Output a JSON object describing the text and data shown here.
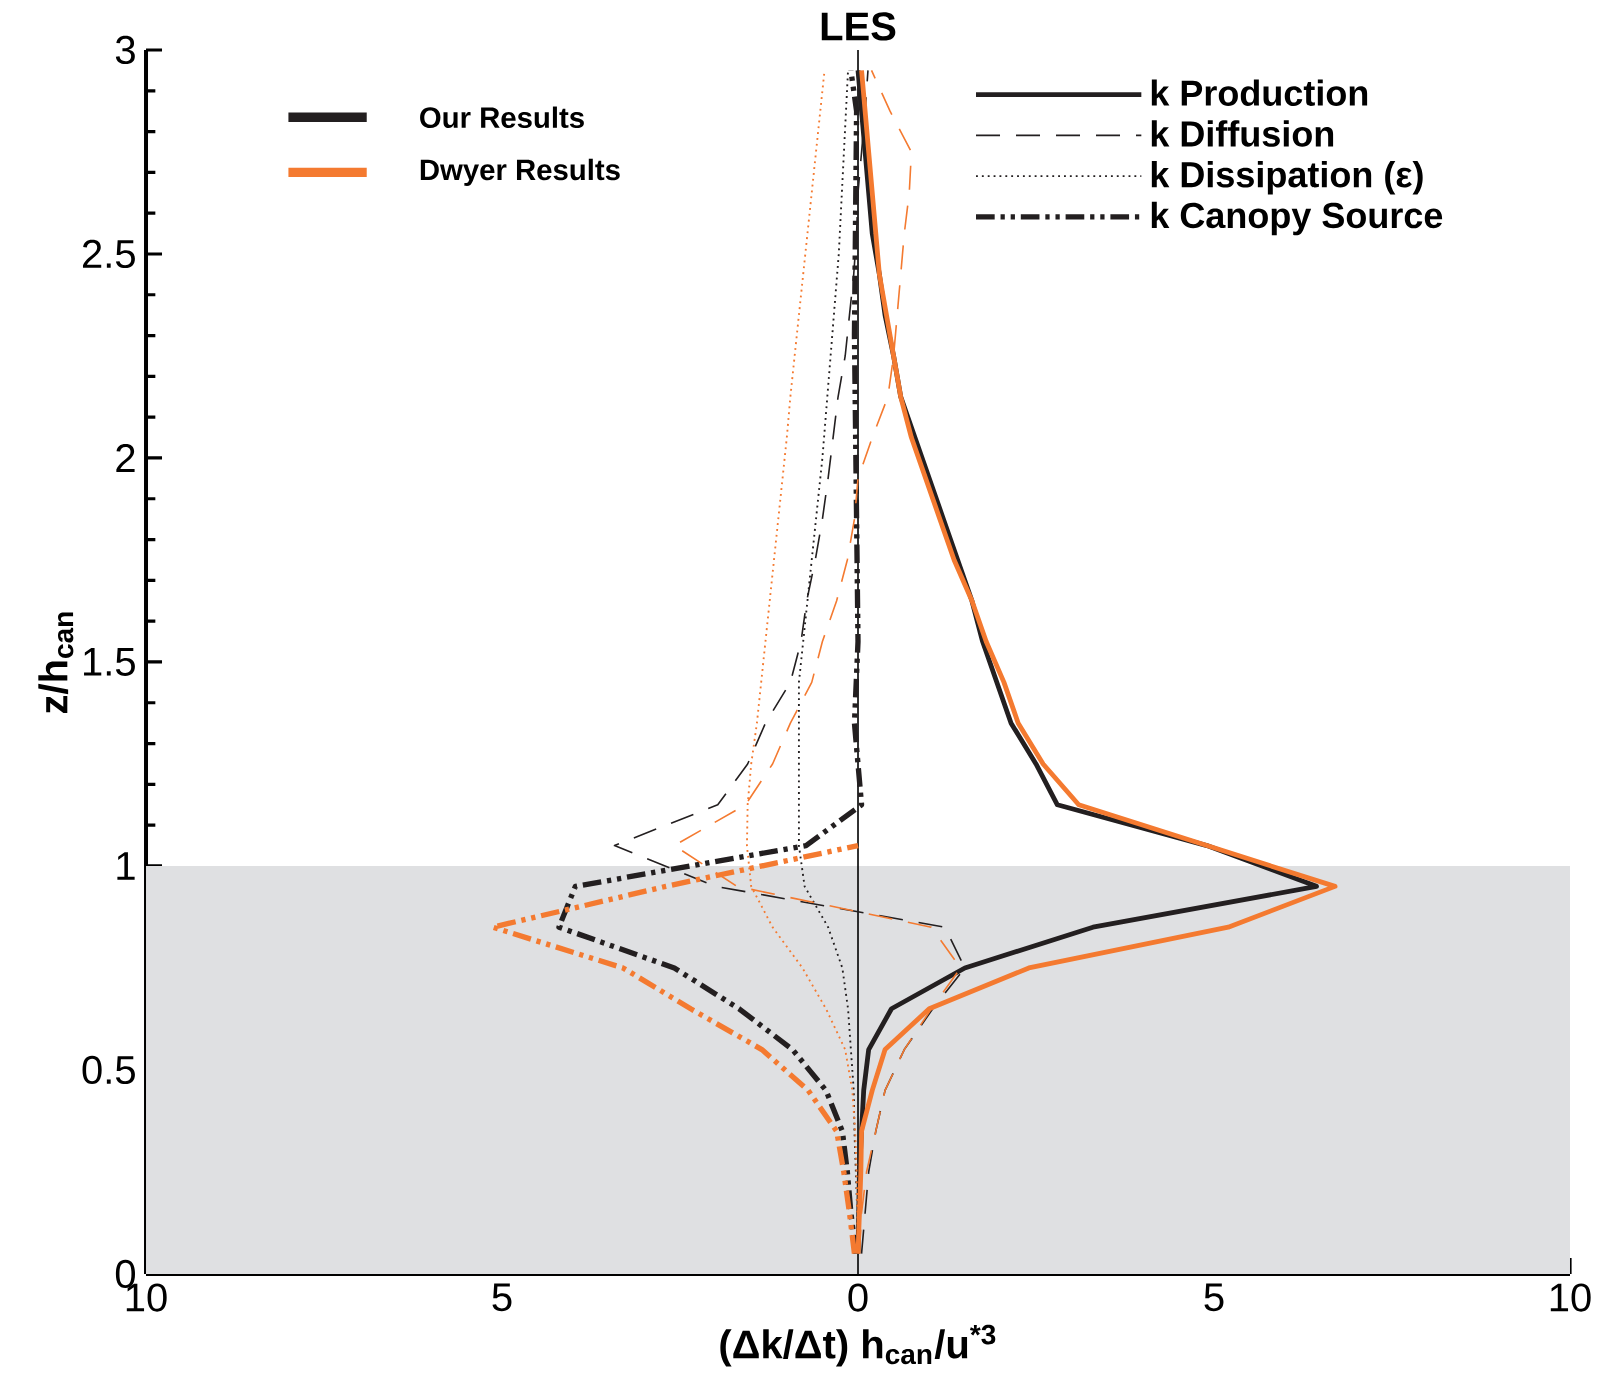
{
  "chart_data": {
    "type": "line",
    "title": "LES",
    "xlabel": "(Δk/Δt) h$_{can}$/u$^{*3}$",
    "ylabel": "z/h$_{can}$",
    "xlim": [
      -10,
      10
    ],
    "ylim": [
      0,
      3
    ],
    "xticks": [
      {
        "value": -10,
        "label": "10"
      },
      {
        "value": -5,
        "label": "5"
      },
      0,
      5,
      10
    ],
    "yticks": [
      0,
      0.5,
      1,
      1.5,
      2,
      2.5,
      3
    ],
    "legend": "top right",
    "annotations": [
      "Our Results",
      "Dwyer Results"
    ],
    "bands": [
      {
        "axis": "y",
        "from": 0,
        "to": 1,
        "color": "#dfe0e2"
      }
    ],
    "ref_lines": [
      {
        "axis": "x",
        "value": 0,
        "color": "#000000"
      }
    ],
    "series": [
      {
        "name": "k Production",
        "color": "#231f20",
        "line_style": "solid",
        "x": [
          0.0,
          0.01,
          0.02,
          0.05,
          0.08,
          0.15,
          0.47,
          1.5,
          3.3,
          6.44,
          4.9,
          2.8,
          2.5,
          2.15,
          1.95,
          1.75,
          1.6,
          1.4,
          1.2,
          1.0,
          0.8,
          0.6,
          0.5,
          0.38,
          0.3,
          0.2,
          0.15,
          0.1,
          0.05,
          0.0
        ],
        "values": [
          0.05,
          0.15,
          0.25,
          0.35,
          0.45,
          0.55,
          0.65,
          0.75,
          0.85,
          0.95,
          1.05,
          1.15,
          1.25,
          1.35,
          1.45,
          1.55,
          1.65,
          1.75,
          1.85,
          1.95,
          2.05,
          2.15,
          2.25,
          2.35,
          2.45,
          2.55,
          2.65,
          2.75,
          2.85,
          2.95
        ]
      },
      {
        "name": "k Diffusion",
        "color": "#231f20",
        "line_style": "dashed",
        "x": [
          0.05,
          0.1,
          0.15,
          0.25,
          0.38,
          0.65,
          1.05,
          1.5,
          1.22,
          -2.0,
          -3.42,
          -1.97,
          -1.55,
          -1.3,
          -0.95,
          -0.8,
          -0.72,
          -0.6,
          -0.5,
          -0.42,
          -0.35,
          -0.28,
          -0.18,
          -0.12,
          -0.06,
          -0.02,
          0.0,
          0.05,
          0.1,
          0.14
        ],
        "values": [
          0.05,
          0.15,
          0.25,
          0.35,
          0.45,
          0.55,
          0.65,
          0.75,
          0.85,
          0.95,
          1.05,
          1.15,
          1.25,
          1.35,
          1.45,
          1.55,
          1.65,
          1.75,
          1.85,
          1.95,
          2.05,
          2.15,
          2.25,
          2.35,
          2.45,
          2.55,
          2.65,
          2.75,
          2.85,
          2.95
        ]
      },
      {
        "name": "k Dissipation (ε)",
        "color": "#231f20",
        "line_style": "dotted",
        "x": [
          0.0,
          -0.01,
          -0.03,
          -0.05,
          -0.06,
          -0.1,
          -0.14,
          -0.22,
          -0.42,
          -0.75,
          -0.83,
          -0.83,
          -0.5,
          -0.27,
          -0.14
        ],
        "values": [
          0.05,
          0.15,
          0.25,
          0.35,
          0.45,
          0.55,
          0.65,
          0.75,
          0.85,
          0.95,
          1.05,
          1.45,
          2.0,
          2.5,
          2.95
        ]
      },
      {
        "name": "k Canopy Source",
        "color": "#231f20",
        "line_style": "dashdotdotted",
        "x": [
          -0.03,
          -0.1,
          -0.15,
          -0.22,
          -0.45,
          -0.92,
          -1.67,
          -2.58,
          -4.2,
          -3.97,
          -0.73,
          0.05,
          -0.05,
          0.0,
          -0.05,
          -0.02,
          -0.1
        ],
        "values": [
          0.05,
          0.15,
          0.25,
          0.35,
          0.45,
          0.55,
          0.65,
          0.75,
          0.85,
          0.95,
          1.05,
          1.15,
          1.35,
          1.55,
          2.3,
          2.85,
          2.95
        ]
      },
      {
        "color": "#f47a30",
        "line_style": "solid",
        "x": [
          0.0,
          0.02,
          0.04,
          0.05,
          0.2,
          0.38,
          1.0,
          2.4,
          5.2,
          6.7,
          4.9,
          3.1,
          2.6,
          2.25,
          2.05,
          1.8,
          1.6,
          1.35,
          1.15,
          0.95,
          0.75,
          0.6,
          0.5,
          0.4,
          0.3,
          0.25,
          0.2,
          0.15,
          0.1,
          0.05
        ],
        "values": [
          0.05,
          0.15,
          0.25,
          0.35,
          0.45,
          0.55,
          0.65,
          0.75,
          0.85,
          0.95,
          1.05,
          1.15,
          1.25,
          1.35,
          1.45,
          1.55,
          1.65,
          1.75,
          1.85,
          1.95,
          2.05,
          2.15,
          2.25,
          2.35,
          2.45,
          2.55,
          2.65,
          2.75,
          2.85,
          2.95
        ]
      },
      {
        "color": "#f47a30",
        "line_style": "dashed",
        "x": [
          0.02,
          0.05,
          0.12,
          0.25,
          0.38,
          0.65,
          1.03,
          1.44,
          1.03,
          -1.7,
          -2.58,
          -1.58,
          -1.2,
          -0.95,
          -0.65,
          -0.5,
          -0.3,
          -0.15,
          -0.05,
          0.0,
          0.2,
          0.42,
          0.5,
          0.55,
          0.6,
          0.65,
          0.72,
          0.75,
          0.45,
          0.19
        ],
        "values": [
          0.05,
          0.15,
          0.25,
          0.35,
          0.45,
          0.55,
          0.65,
          0.75,
          0.85,
          0.95,
          1.05,
          1.15,
          1.25,
          1.35,
          1.45,
          1.55,
          1.65,
          1.75,
          1.85,
          1.95,
          2.05,
          2.15,
          2.25,
          2.35,
          2.45,
          2.55,
          2.65,
          2.75,
          2.85,
          2.95
        ]
      },
      {
        "color": "#f47a30",
        "line_style": "dotted",
        "x": [
          0.0,
          -0.01,
          -0.02,
          -0.04,
          -0.08,
          -0.18,
          -0.45,
          -0.78,
          -1.2,
          -1.5,
          -1.56,
          -1.55,
          -1.5,
          -1.42,
          -1.36,
          -1.3,
          -1.24,
          -1.18,
          -1.12,
          -1.06,
          -1.0,
          -0.95,
          -0.89,
          -0.83,
          -0.77,
          -0.71,
          -0.65,
          -0.59,
          -0.53,
          -0.47
        ],
        "values": [
          0.05,
          0.15,
          0.25,
          0.35,
          0.45,
          0.55,
          0.65,
          0.75,
          0.85,
          0.95,
          1.05,
          1.15,
          1.25,
          1.35,
          1.45,
          1.55,
          1.65,
          1.75,
          1.85,
          1.95,
          2.05,
          2.15,
          2.25,
          2.35,
          2.45,
          2.55,
          2.65,
          2.75,
          2.85,
          2.95
        ]
      },
      {
        "color": "#f47a30",
        "line_style": "dashdotdotted",
        "x": [
          -0.05,
          -0.12,
          -0.2,
          -0.3,
          -0.7,
          -1.35,
          -2.35,
          -3.3,
          -5.13,
          -2.7,
          0.0
        ],
        "values": [
          0.05,
          0.15,
          0.25,
          0.35,
          0.45,
          0.55,
          0.65,
          0.75,
          0.85,
          0.95,
          1.05
        ]
      }
    ]
  }
}
